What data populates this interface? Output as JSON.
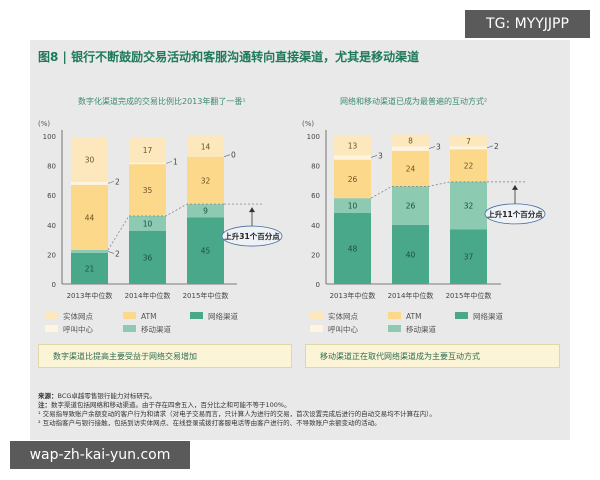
{
  "watermark_top": "TG: MYYJJPP",
  "watermark_bottom": "wap-zh-kai-yun.com",
  "title": "图8 | 银行不断鼓励交易活动和客服沟通转向直接渠道，尤其是移动渠道",
  "colors": {
    "网络渠道": "#4aa88a",
    "移动渠道": "#8ccab2",
    "ATM": "#fcd98a",
    "呼叫中心": "#fff4df",
    "实体网点": "#fde8bd",
    "title": "#1f7a5a"
  },
  "legend": [
    "实体网点",
    "ATM",
    "网络渠道",
    "呼叫中心",
    "移动渠道"
  ],
  "chart_data": [
    {
      "type": "bar",
      "stacked": true,
      "title": "数字化渠道完成的交易比例比2013年翻了一番¹",
      "ylabel": "(%)",
      "ylim": [
        0,
        100
      ],
      "yticks": [
        0,
        20,
        40,
        60,
        80,
        100
      ],
      "categories": [
        "2013年中位数",
        "2014年中位数",
        "2015年中位数"
      ],
      "series": [
        {
          "name": "网络渠道",
          "values": [
            21,
            36,
            45
          ]
        },
        {
          "name": "移动渠道",
          "values": [
            2,
            10,
            9
          ]
        },
        {
          "name": "ATM",
          "values": [
            44,
            35,
            32
          ]
        },
        {
          "name": "呼叫中心",
          "values": [
            2,
            1,
            0
          ]
        },
        {
          "name": "实体网点",
          "values": [
            30,
            17,
            14
          ]
        }
      ],
      "annotation": "上升31个百分点",
      "caption": "数字渠道比提高主要受益于网络交易增加"
    },
    {
      "type": "bar",
      "stacked": true,
      "title": "网络和移动渠道已成为最普遍的互动方式²",
      "ylabel": "(%)",
      "ylim": [
        0,
        100
      ],
      "yticks": [
        0,
        20,
        40,
        60,
        80,
        100
      ],
      "categories": [
        "2013年中位数",
        "2014年中位数",
        "2015年中位数"
      ],
      "series": [
        {
          "name": "网络渠道",
          "values": [
            48,
            40,
            37
          ]
        },
        {
          "name": "移动渠道",
          "values": [
            10,
            26,
            32
          ]
        },
        {
          "name": "ATM",
          "values": [
            26,
            24,
            22
          ]
        },
        {
          "name": "呼叫中心",
          "values": [
            3,
            3,
            2
          ]
        },
        {
          "name": "实体网点",
          "values": [
            13,
            8,
            7
          ]
        }
      ],
      "annotation": "上升11个百分点",
      "caption": "移动渠道正在取代网络渠道成为主要互动方式"
    }
  ],
  "notes": {
    "source_label": "来源：",
    "source": "BCG卓越零售银行能力对标研究。",
    "note_label": "注：",
    "note": "数字渠道包括网络和移动渠道。由于存在四舍五入，百分比之和可能不等于100%。",
    "fn1": "¹ 交易指导致账户余额变动的客户行为和请求（对电子交易而言，只计算人为进行的交易，首次设置完成后进行的自动交易均不计算在内）。",
    "fn2": "² 互动指客户与银行接触，包括到访实体网点、在线登录或拨打客服电话等由客户进行的、不导致账户余额变动的活动。"
  }
}
